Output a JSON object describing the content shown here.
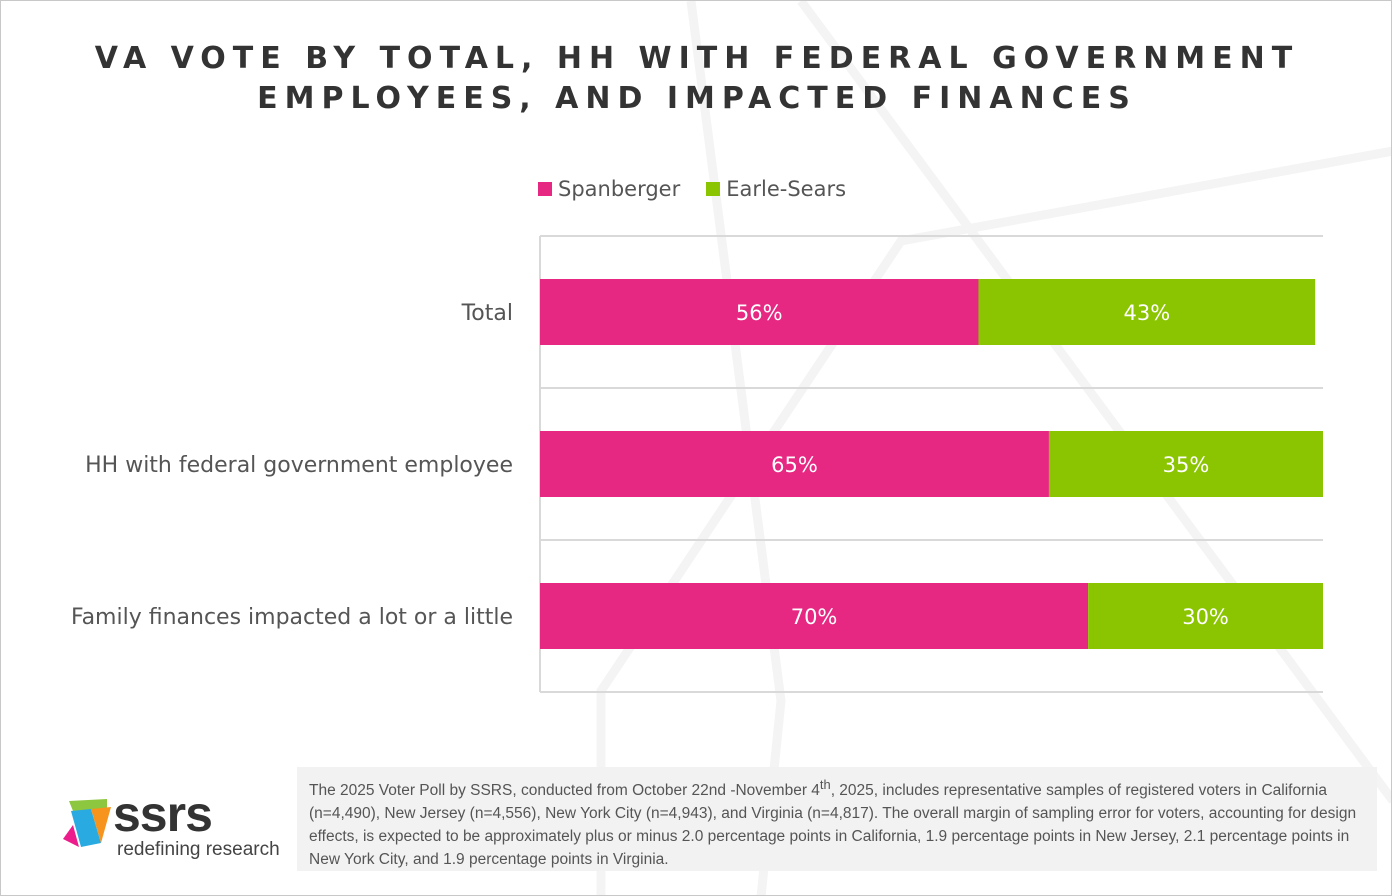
{
  "chart_data": {
    "type": "bar",
    "orientation": "horizontal",
    "stacked": true,
    "title": "VA VOTE BY TOTAL, HH WITH FEDERAL GOVERNMENT EMPLOYEES, AND IMPACTED FINANCES",
    "title_lines": [
      "VA VOTE BY TOTAL, HH WITH FEDERAL GOVERNMENT",
      "EMPLOYEES, AND IMPACTED FINANCES"
    ],
    "categories": [
      "Total",
      "HH with federal government employee",
      "Family finances impacted a lot or a little"
    ],
    "series": [
      {
        "name": "Spanberger",
        "values": [
          56,
          65,
          70
        ],
        "labels": [
          "56%",
          "65%",
          "70%"
        ],
        "color": "#E62882"
      },
      {
        "name": "Earle-Sears",
        "values": [
          43,
          35,
          30
        ],
        "labels": [
          "43%",
          "35%",
          "30%"
        ],
        "color": "#8BC400"
      }
    ],
    "xlim": [
      0,
      100
    ],
    "legend": "top",
    "grid": true
  },
  "footnote": {
    "text_before_sup": "The 2025 Voter Poll by SSRS, conducted from October 22nd -November 4",
    "sup": "th",
    "text_after_sup": ", 2025, includes representative samples of registered voters in California (n=4,490), New Jersey (n=4,556), New York City (n=4,943), and Virginia (n=4,817). The overall margin of sampling error for voters, accounting for design effects, is expected to be approximately plus or minus 2.0 percentage points in California, 1.9 percentage points in New Jersey, 2.1 percentage points in New York City, and 1.9 percentage points in Virginia."
  },
  "logo": {
    "wordmark": "ssrs",
    "tagline": "redefining research"
  }
}
